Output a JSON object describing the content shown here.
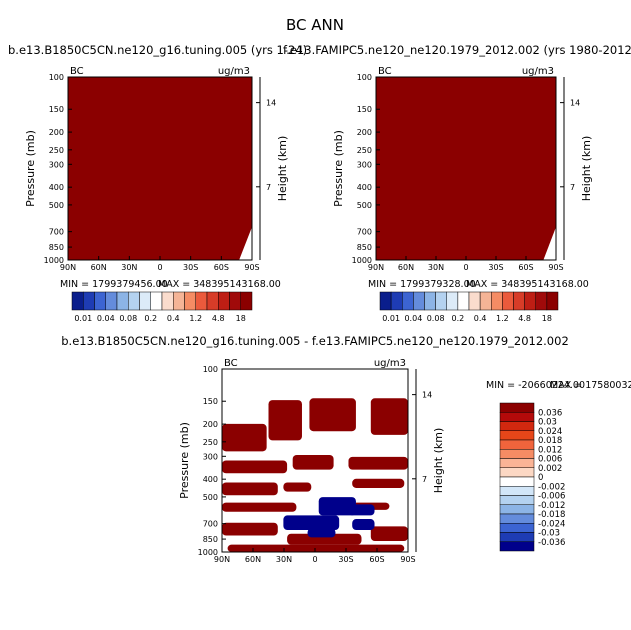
{
  "figure": {
    "title": "BC ANN",
    "top_left_title": "b.e13.B1850C5CN.ne120_g16.tuning.005 (yrs 1-24)",
    "top_right_title": "f.e13.FAMIPC5.ne120_ne120.1979_2012.002 (yrs 1980-2012)",
    "bottom_title": "b.e13.B1850C5CN.ne120_g16.tuning.005 - f.e13.FAMIPC5.ne120_ne120.1979_2012.002"
  },
  "chart_data": [
    {
      "type": "heatmap",
      "panel": "model",
      "variable_label": "BC",
      "units_label": "ug/m3",
      "ylabel": "Pressure (mb)",
      "right_ylabel": "Height (km)",
      "x_ticks": [
        "90N",
        "60N",
        "30N",
        "0",
        "30S",
        "60S",
        "90S"
      ],
      "y_ticks": [
        "100",
        "150",
        "200",
        "250",
        "300",
        "400",
        "500",
        "700",
        "850",
        "1000"
      ],
      "right_ticks": [
        "14",
        "7"
      ],
      "min_label": "MIN = 1799379456.00",
      "max_label": "MAX = 348395143168.00",
      "field_color": "#8b0000",
      "colorbar_labels": [
        "0.01",
        "0.04",
        "0.08",
        "0.2",
        "0.4",
        "1.2",
        "4.8",
        "18"
      ],
      "colorbar_colors": [
        "#0a1e8c",
        "#1e3cb4",
        "#3c64d2",
        "#648cdc",
        "#8cb4e6",
        "#b4d2f0",
        "#dcebf8",
        "#ffffff",
        "#fadccd",
        "#f5b496",
        "#f58c64",
        "#eb5a3c",
        "#d73c28",
        "#be1e14",
        "#a00a0a",
        "#8b0000"
      ]
    },
    {
      "type": "heatmap",
      "panel": "obs",
      "variable_label": "BC",
      "units_label": "ug/m3",
      "ylabel": "Pressure (mb)",
      "right_ylabel": "Height (km)",
      "x_ticks": [
        "90N",
        "60N",
        "30N",
        "0",
        "30S",
        "60S",
        "90S"
      ],
      "y_ticks": [
        "100",
        "150",
        "200",
        "250",
        "300",
        "400",
        "500",
        "700",
        "850",
        "1000"
      ],
      "right_ticks": [
        "14",
        "7"
      ],
      "min_label": "MIN = 1799379328.00",
      "max_label": "MAX = 348395143168.00",
      "field_color": "#8b0000",
      "colorbar_labels": [
        "0.01",
        "0.04",
        "0.08",
        "0.2",
        "0.4",
        "1.2",
        "4.8",
        "18"
      ],
      "colorbar_colors": [
        "#0a1e8c",
        "#1e3cb4",
        "#3c64d2",
        "#648cdc",
        "#8cb4e6",
        "#b4d2f0",
        "#dcebf8",
        "#ffffff",
        "#fadccd",
        "#f5b496",
        "#f58c64",
        "#eb5a3c",
        "#d73c28",
        "#be1e14",
        "#a00a0a",
        "#8b0000"
      ]
    },
    {
      "type": "heatmap",
      "panel": "difference",
      "variable_label": "BC",
      "units_label": "ug/m3",
      "ylabel": "Pressure (mb)",
      "right_ylabel": "Height (km)",
      "x_ticks": [
        "90N",
        "60N",
        "30N",
        "0",
        "30S",
        "60S",
        "90S"
      ],
      "y_ticks": [
        "100",
        "150",
        "200",
        "250",
        "300",
        "400",
        "500",
        "700",
        "850",
        "1000"
      ],
      "right_ticks": [
        "14",
        "7"
      ],
      "min_label": "MIN = -20660224.00",
      "max_label": "MAX = 17580032.",
      "positive_color": "#8b0000",
      "negative_color": "#00008b",
      "colorbar_labels": [
        "0.036",
        "0.03",
        "0.024",
        "0.018",
        "0.012",
        "0.006",
        "0.002",
        "0",
        "-0.002",
        "-0.006",
        "-0.012",
        "-0.018",
        "-0.024",
        "-0.03",
        "-0.036"
      ],
      "colorbar_colors": [
        "#8b0000",
        "#b40a0a",
        "#d2280f",
        "#e64619",
        "#f0643c",
        "#f58c64",
        "#fab496",
        "#fcd8c4",
        "#ffffff",
        "#d2e6f8",
        "#b4d2f0",
        "#8cb4e6",
        "#648cdc",
        "#3c64d2",
        "#1e3cb4",
        "#00008b"
      ]
    }
  ]
}
